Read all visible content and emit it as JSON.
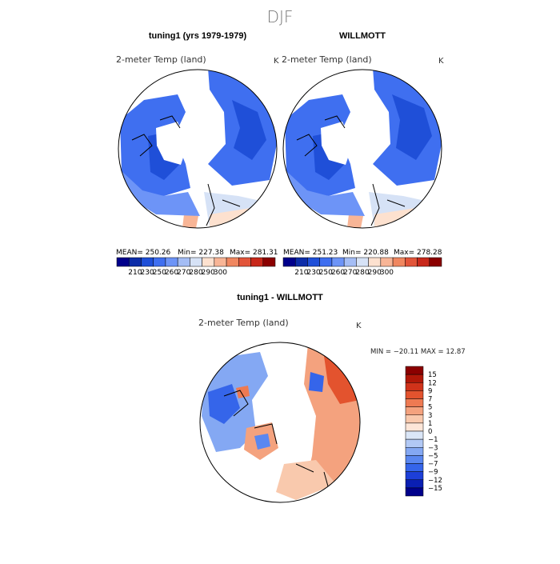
{
  "season": "DJF",
  "colors": {
    "abs": [
      "#00008b",
      "#0c2ca8",
      "#1f4fd8",
      "#3f6ff0",
      "#6d94f7",
      "#a4bdf5",
      "#d6e2f6",
      "#fde1cf",
      "#f8b596",
      "#f08760",
      "#e2553a",
      "#c8281b",
      "#8b0000"
    ],
    "diff": [
      "#00008b",
      "#0a1fb3",
      "#1d3fd8",
      "#3565ea",
      "#5a87f0",
      "#84a8f3",
      "#b2c9f5",
      "#dae6f7",
      "#fde6d8",
      "#f9c9ad",
      "#f4a27e",
      "#ee7a52",
      "#e3532e",
      "#d0321a",
      "#b01708",
      "#8b0000"
    ]
  },
  "chart_data": [
    {
      "type": "heatmap",
      "projection": "north-polar-stereographic",
      "title": "tuning1 (yrs 1979-1979)",
      "field": "2-meter Temp (land)",
      "units": "K",
      "stats": {
        "mean": "250.26",
        "min": "227.38",
        "max": "281.31"
      },
      "stats_labels": {
        "mean": "MEAN= 250.26",
        "min": "Min= 227.38",
        "max": "Max= 281.31"
      },
      "colorbar_ticks": [
        "210",
        "230",
        "250",
        "260",
        "270",
        "280",
        "290",
        "300"
      ]
    },
    {
      "type": "heatmap",
      "projection": "north-polar-stereographic",
      "title": "WILLMOTT",
      "field": "2-meter Temp (land)",
      "units": "K",
      "stats": {
        "mean": "251.23",
        "min": "220.88",
        "max": "278.28"
      },
      "stats_labels": {
        "mean": "MEAN= 251.23",
        "min": "Min= 220.88",
        "max": "Max= 278.28"
      },
      "colorbar_ticks": [
        "210",
        "230",
        "250",
        "260",
        "270",
        "280",
        "290",
        "300"
      ]
    },
    {
      "type": "heatmap",
      "projection": "north-polar-stereographic",
      "title": "tuning1 - WILLMOTT",
      "field": "2-meter Temp (land)",
      "units": "K",
      "stats": {
        "min": "-20.11",
        "max": "12.87"
      },
      "stats_label": "MIN = −20.11  MAX =   12.87",
      "colorbar_ticks": [
        "15",
        "12",
        "9",
        "7",
        "5",
        "3",
        "1",
        "0",
        "−1",
        "−3",
        "−5",
        "−7",
        "−9",
        "−12",
        "−15"
      ]
    }
  ]
}
